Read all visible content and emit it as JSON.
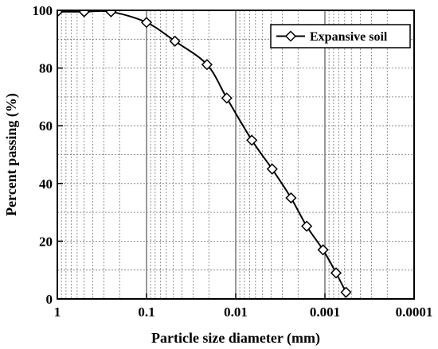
{
  "chart_data": {
    "type": "scatter",
    "xlabel": "Particle size diameter (mm)",
    "ylabel": "Percent passing (%)",
    "x_scale": "log",
    "x_reversed": true,
    "xlim": [
      1,
      0.0001
    ],
    "ylim": [
      0,
      100
    ],
    "x_ticks": [
      1,
      0.1,
      0.01,
      0.001,
      0.0001
    ],
    "x_tick_labels": [
      "1",
      "0.1",
      "0.01",
      "0.001",
      "0.0001"
    ],
    "y_ticks": [
      0,
      20,
      40,
      60,
      80,
      100
    ],
    "y_tick_labels": [
      "0",
      "20",
      "40",
      "60",
      "80",
      "100"
    ],
    "grid": true,
    "legend_position": "top-right",
    "series": [
      {
        "name": "Expansive soil",
        "marker": "diamond",
        "color": "#000000",
        "x": [
          1.0,
          0.5,
          0.25,
          0.1,
          0.048,
          0.021,
          0.0126,
          0.0066,
          0.0039,
          0.0024,
          0.0016,
          0.00105,
          0.00075,
          0.00058
        ],
        "y": [
          99.5,
          99.5,
          99.5,
          95.8,
          89.3,
          81.2,
          69.6,
          55.0,
          45.0,
          35.0,
          25.2,
          17.0,
          9.0,
          2.3
        ]
      }
    ]
  }
}
